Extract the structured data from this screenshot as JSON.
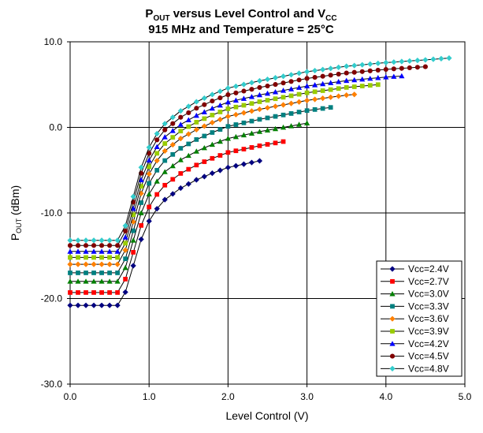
{
  "chart_data": {
    "type": "line",
    "title_line1_parts": [
      "P",
      "OUT",
      " versus Level Control and V",
      "CC"
    ],
    "title_line2": "915 MHz and Temperature = 25°C",
    "xlabel": "Level Control (V)",
    "ylabel_main": "P",
    "ylabel_sub": "OUT",
    "ylabel_tail": " (dBm)",
    "xlim": [
      0,
      5
    ],
    "ylim": [
      -30,
      10
    ],
    "x_ticks": [
      0,
      1,
      2,
      3,
      4,
      5
    ],
    "x_tick_labels": [
      "0.0",
      "1.0",
      "2.0",
      "3.0",
      "4.0",
      "5.0"
    ],
    "y_ticks": [
      -30,
      -20,
      -10,
      0,
      10
    ],
    "y_tick_labels": [
      "-30.0",
      "-20.0",
      "-10.0",
      "0.0",
      "10.0"
    ],
    "grid": true,
    "legend_position": "bottom-right",
    "series": [
      {
        "name": "Vcc=2.4V",
        "color": "#000080",
        "marker": "diamond",
        "vcc": 2.4,
        "floor": -20.8,
        "ceil": -1.5,
        "xmax": 2.4
      },
      {
        "name": "Vcc=2.7V",
        "color": "#ff0000",
        "marker": "square",
        "vcc": 2.7,
        "floor": -19.3,
        "ceil": 0.3,
        "xmax": 2.7
      },
      {
        "name": "Vcc=3.0V",
        "color": "#008000",
        "marker": "triangle",
        "vcc": 3.0,
        "floor": -18.0,
        "ceil": 2.0,
        "xmax": 3.0
      },
      {
        "name": "Vcc=3.3V",
        "color": "#008080",
        "marker": "square",
        "vcc": 3.3,
        "floor": -17.0,
        "ceil": 3.5,
        "xmax": 3.3
      },
      {
        "name": "Vcc=3.6V",
        "color": "#ff8000",
        "marker": "diamond",
        "vcc": 3.6,
        "floor": -16.0,
        "ceil": 4.7,
        "xmax": 3.6
      },
      {
        "name": "Vcc=3.9V",
        "color": "#99cc00",
        "marker": "square",
        "vcc": 3.9,
        "floor": -15.2,
        "ceil": 5.6,
        "xmax": 3.9
      },
      {
        "name": "Vcc=4.2V",
        "color": "#0000ff",
        "marker": "triangle",
        "vcc": 4.2,
        "floor": -14.5,
        "ceil": 6.4,
        "xmax": 4.2
      },
      {
        "name": "Vcc=4.5V",
        "color": "#800000",
        "marker": "circle",
        "vcc": 4.5,
        "floor": -13.8,
        "ceil": 7.3,
        "xmax": 4.5
      },
      {
        "name": "Vcc=4.8V",
        "color": "#33cccc",
        "marker": "diamond",
        "vcc": 4.8,
        "floor": -13.2,
        "ceil": 8.1,
        "xmax": 4.8
      }
    ],
    "x_step": 0.1,
    "knee_x": 0.6,
    "shape_points": [
      [
        0.6,
        0.0
      ],
      [
        0.7,
        0.08
      ],
      [
        0.8,
        0.24
      ],
      [
        0.9,
        0.4
      ],
      [
        1.0,
        0.51
      ],
      [
        1.1,
        0.585
      ],
      [
        1.2,
        0.64
      ],
      [
        1.4,
        0.71
      ],
      [
        1.6,
        0.76
      ],
      [
        1.8,
        0.8
      ],
      [
        2.0,
        0.835
      ],
      [
        2.4,
        0.875
      ],
      [
        2.7,
        0.9
      ],
      [
        3.0,
        0.925
      ],
      [
        3.5,
        0.955
      ],
      [
        4.0,
        0.975
      ],
      [
        4.5,
        0.99
      ],
      [
        4.8,
        1.0
      ]
    ]
  }
}
